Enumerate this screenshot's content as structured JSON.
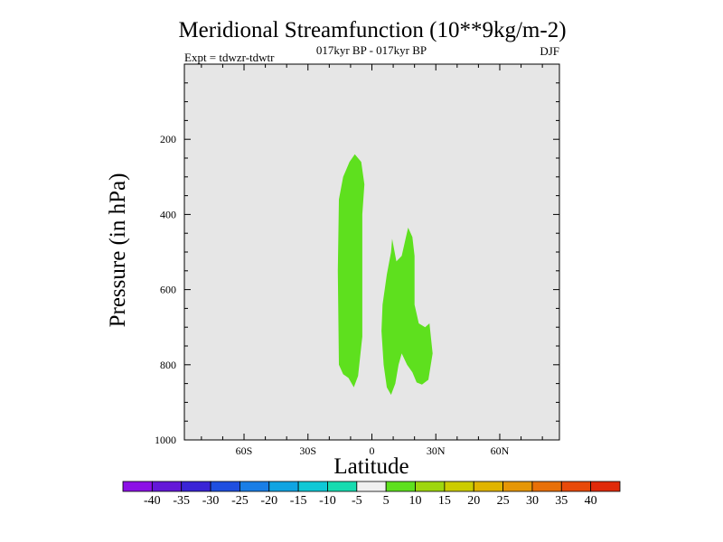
{
  "chart_data": {
    "type": "contour",
    "title": "Meridional Streamfunction (10**9kg/m-2)",
    "subtitle_left": "Expt = tdwzr-tdwtr",
    "subtitle_center": "017kyr BP - 017kyr BP",
    "subtitle_right": "DJF",
    "xlabel": "Latitude",
    "ylabel": "Pressure (in hPa)",
    "x_ticks": [
      {
        "value": -60,
        "label": "60S"
      },
      {
        "value": -30,
        "label": "30S"
      },
      {
        "value": 0,
        "label": "0"
      },
      {
        "value": 30,
        "label": "30N"
      },
      {
        "value": 60,
        "label": "60N"
      }
    ],
    "y_ticks": [
      {
        "value": 200,
        "label": "200"
      },
      {
        "value": 400,
        "label": "400"
      },
      {
        "value": 600,
        "label": "600"
      },
      {
        "value": 800,
        "label": "800"
      },
      {
        "value": 1000,
        "label": "1000"
      }
    ],
    "xlim": [
      -88,
      88
    ],
    "ylim": [
      1000,
      0
    ],
    "background_color": "#e6e6e6",
    "regions": [
      {
        "level": "5 to 10",
        "color": "#5ee01e",
        "points": [
          [
            -15.5,
            800
          ],
          [
            -13.5,
            825
          ],
          [
            -11,
            835
          ],
          [
            -8.5,
            860
          ],
          [
            -6.5,
            830
          ],
          [
            -4.5,
            725
          ],
          [
            -4.5,
            400
          ],
          [
            -3.5,
            320
          ],
          [
            -5,
            260
          ],
          [
            -8,
            240
          ],
          [
            -10.5,
            260
          ],
          [
            -13.5,
            300
          ],
          [
            -15.5,
            360
          ],
          [
            -16,
            550
          ]
        ]
      },
      {
        "level": "5 to 10",
        "color": "#5ee01e",
        "points": [
          [
            4.5,
            710
          ],
          [
            5,
            640
          ],
          [
            7,
            560
          ],
          [
            9,
            500
          ],
          [
            9.5,
            465
          ],
          [
            11.5,
            525
          ],
          [
            14,
            510
          ],
          [
            16,
            460
          ],
          [
            17,
            435
          ],
          [
            19,
            460
          ],
          [
            20,
            510
          ],
          [
            20,
            640
          ],
          [
            22,
            690
          ],
          [
            25,
            700
          ],
          [
            27,
            690
          ],
          [
            28.5,
            770
          ],
          [
            26.5,
            840
          ],
          [
            23.5,
            853
          ],
          [
            21,
            847
          ],
          [
            19,
            820
          ],
          [
            16.5,
            800
          ],
          [
            14,
            770
          ],
          [
            12.5,
            800
          ],
          [
            11,
            850
          ],
          [
            9,
            880
          ],
          [
            7,
            860
          ],
          [
            5.5,
            800
          ]
        ]
      }
    ],
    "colorbar": {
      "labels": [
        "-40",
        "-35",
        "-30",
        "-25",
        "-20",
        "-15",
        "-10",
        "-5",
        "5",
        "10",
        "15",
        "20",
        "25",
        "30",
        "35",
        "40"
      ],
      "colors": [
        "#8c10e6",
        "#6418d8",
        "#3a24d6",
        "#1f4fe0",
        "#1a7ee6",
        "#10a4e2",
        "#0fc8d6",
        "#16dcb0",
        "#f0f0f0",
        "#5ee01e",
        "#9ed60e",
        "#cccc00",
        "#e0b400",
        "#e69606",
        "#e87008",
        "#e84a0a",
        "#e02a0a"
      ]
    }
  }
}
